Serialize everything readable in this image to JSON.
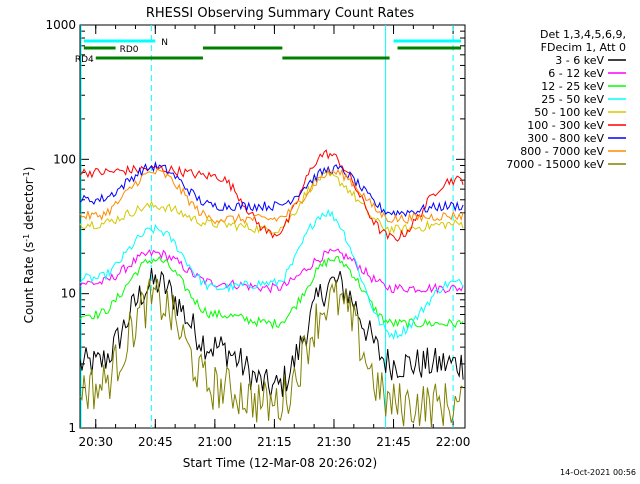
{
  "chart_data": {
    "type": "line",
    "title": "RHESSI Observing Summary Count Rates",
    "xlabel": "Start Time (12-Mar-08 20:26:02)",
    "ylabel_main": "Count Rate (s",
    "ylabel_sup1": "-1",
    "ylabel_mid": " detector",
    "ylabel_sup2": "-1",
    "ylabel_end": ")",
    "x_range": [
      "20:26",
      "22:03"
    ],
    "y_range": [
      1,
      1000
    ],
    "y_scale": "log",
    "x_ticks": [
      "20:30",
      "20:45",
      "21:00",
      "21:15",
      "21:30",
      "21:45",
      "22:00"
    ],
    "y_ticks": [
      "1",
      "10",
      "100",
      "1000"
    ],
    "legend_header": [
      "Det 1,3,4,5,6,9,",
      "FDecim 1, Att 0"
    ],
    "legend_position": "top-right, outside plot",
    "series": [
      {
        "name": "3 - 6 keV",
        "color": "#000000",
        "values": [
          {
            "t": "20:30",
            "v": 3
          },
          {
            "t": "20:45",
            "v": 12
          },
          {
            "t": "21:00",
            "v": 4
          },
          {
            "t": "21:15",
            "v": 2
          },
          {
            "t": "21:30",
            "v": 12
          },
          {
            "t": "21:45",
            "v": 3
          },
          {
            "t": "22:00",
            "v": 3
          }
        ]
      },
      {
        "name": "6 - 12 keV",
        "color": "#ff00ff",
        "values": [
          {
            "t": "20:30",
            "v": 12
          },
          {
            "t": "20:45",
            "v": 20
          },
          {
            "t": "21:00",
            "v": 12
          },
          {
            "t": "21:15",
            "v": 11
          },
          {
            "t": "21:30",
            "v": 20
          },
          {
            "t": "21:45",
            "v": 11
          },
          {
            "t": "22:00",
            "v": 11
          }
        ]
      },
      {
        "name": "12 - 25 keV",
        "color": "#00ff00",
        "values": [
          {
            "t": "20:30",
            "v": 7
          },
          {
            "t": "20:45",
            "v": 18
          },
          {
            "t": "21:00",
            "v": 7
          },
          {
            "t": "21:15",
            "v": 6
          },
          {
            "t": "21:30",
            "v": 18
          },
          {
            "t": "21:45",
            "v": 6
          },
          {
            "t": "22:00",
            "v": 6
          }
        ]
      },
      {
        "name": "25 - 50 keV",
        "color": "#00ffff",
        "values": [
          {
            "t": "20:30",
            "v": 13
          },
          {
            "t": "20:45",
            "v": 30
          },
          {
            "t": "21:00",
            "v": 11
          },
          {
            "t": "21:15",
            "v": 12
          },
          {
            "t": "21:28",
            "v": 40
          },
          {
            "t": "21:45",
            "v": 5
          },
          {
            "t": "22:00",
            "v": 12
          }
        ]
      },
      {
        "name": "50 - 100 keV",
        "color": "#d4c800",
        "values": [
          {
            "t": "20:30",
            "v": 33
          },
          {
            "t": "20:45",
            "v": 45
          },
          {
            "t": "21:00",
            "v": 33
          },
          {
            "t": "21:15",
            "v": 30
          },
          {
            "t": "21:28",
            "v": 75
          },
          {
            "t": "21:45",
            "v": 30
          },
          {
            "t": "22:00",
            "v": 33
          }
        ]
      },
      {
        "name": "100 - 300 keV",
        "color": "#ff0000",
        "values": [
          {
            "t": "20:30",
            "v": 80
          },
          {
            "t": "20:45",
            "v": 85
          },
          {
            "t": "21:00",
            "v": 75
          },
          {
            "t": "21:15",
            "v": 28
          },
          {
            "t": "21:28",
            "v": 110
          },
          {
            "t": "21:45",
            "v": 26
          },
          {
            "t": "22:00",
            "v": 70
          }
        ]
      },
      {
        "name": "300 - 800 keV",
        "color": "#0000ff",
        "values": [
          {
            "t": "20:30",
            "v": 50
          },
          {
            "t": "20:45",
            "v": 88
          },
          {
            "t": "21:00",
            "v": 45
          },
          {
            "t": "21:15",
            "v": 45
          },
          {
            "t": "21:30",
            "v": 85
          },
          {
            "t": "21:45",
            "v": 40
          },
          {
            "t": "22:00",
            "v": 45
          }
        ]
      },
      {
        "name": "800 - 7000 keV",
        "color": "#ff8c00",
        "values": [
          {
            "t": "20:30",
            "v": 38
          },
          {
            "t": "20:45",
            "v": 80
          },
          {
            "t": "21:00",
            "v": 36
          },
          {
            "t": "21:15",
            "v": 36
          },
          {
            "t": "21:30",
            "v": 80
          },
          {
            "t": "21:45",
            "v": 36
          },
          {
            "t": "22:00",
            "v": 38
          }
        ]
      },
      {
        "name": "7000 - 15000 keV",
        "color": "#808000",
        "values": [
          {
            "t": "20:30",
            "v": 2
          },
          {
            "t": "20:45",
            "v": 9
          },
          {
            "t": "21:00",
            "v": 2
          },
          {
            "t": "21:15",
            "v": 1.5
          },
          {
            "t": "21:30",
            "v": 9
          },
          {
            "t": "21:45",
            "v": 1.5
          },
          {
            "t": "22:00",
            "v": 1.5
          }
        ]
      }
    ],
    "state_bars": [
      {
        "label": "N",
        "color": "#00ffff",
        "segments": [
          [
            "20:27",
            "20:45"
          ],
          [
            "21:45",
            "22:02"
          ]
        ]
      },
      {
        "label": "RD0",
        "color": "#008000",
        "segments": [
          [
            "20:27",
            "20:35"
          ],
          [
            "20:57",
            "21:17"
          ],
          [
            "21:46",
            "22:02"
          ]
        ]
      },
      {
        "label": "RD4",
        "color": "#008000",
        "segments": [
          [
            "20:30",
            "20:57"
          ],
          [
            "21:17",
            "21:44"
          ]
        ]
      }
    ],
    "vlines_solid": [
      "20:26",
      "21:43"
    ],
    "vlines_dashed": [
      "20:44",
      "22:00"
    ],
    "grid": false,
    "timestamp": "14-Oct-2021 00:56"
  }
}
